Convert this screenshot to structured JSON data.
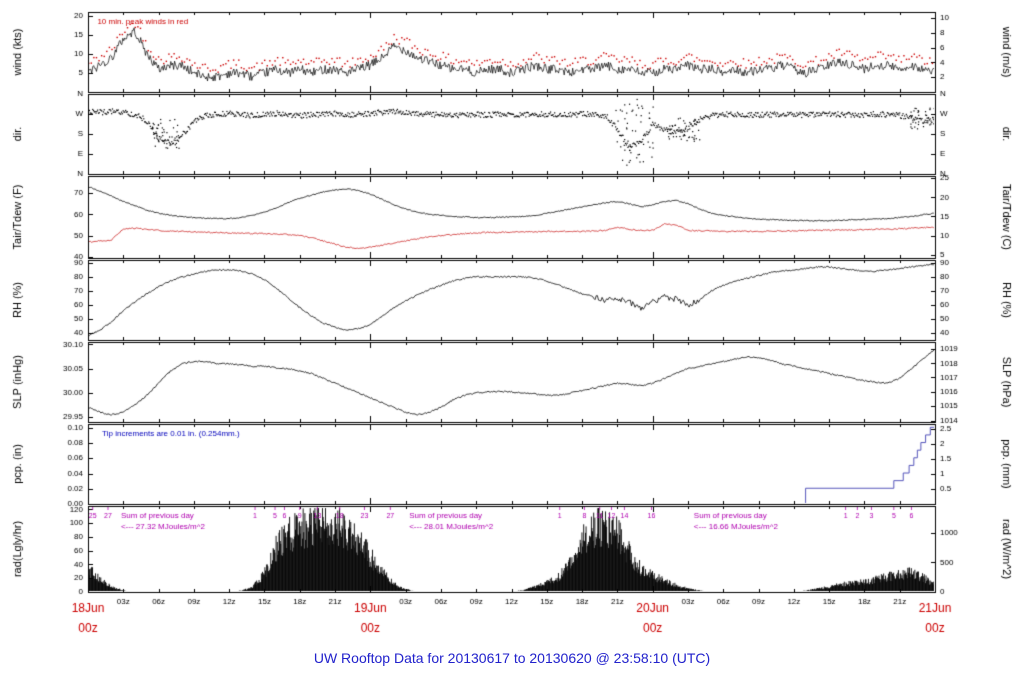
{
  "title": "UW Rooftop Data for 20130617  to  20130620 @ 23:58:10  (UTC)",
  "colors": {
    "trace": "#000000",
    "peak_red": "#cc0000",
    "dew_red": "#cc2222",
    "pcp_blue": "#5555bb",
    "annot_blue": "#0000bb",
    "annot_purple": "#b000b0",
    "axis_red": "#cc0000",
    "title_blue": "#2222cc"
  },
  "chart_data": {
    "type": "line",
    "x_hours": [
      0,
      72
    ],
    "x_minor_step": 3,
    "x_minor_cycle": [
      "03z",
      "06z",
      "09z",
      "12z",
      "15z",
      "18z",
      "21z"
    ],
    "x_major": [
      {
        "hour": 0,
        "date": "18Jun",
        "time": "00z"
      },
      {
        "hour": 24,
        "date": "19Jun",
        "time": "00z"
      },
      {
        "hour": 48,
        "date": "20Jun",
        "time": "00z"
      },
      {
        "hour": 72,
        "date": "21Jun",
        "time": "00z"
      }
    ],
    "panels": [
      {
        "id": "wind",
        "label_left": "wind (kts)",
        "label_right": "wind (m/s)",
        "ylim": [
          0,
          21
        ],
        "ticks_left": [
          [
            5,
            "5"
          ],
          [
            10,
            "10"
          ],
          [
            15,
            "15"
          ],
          [
            20,
            "20"
          ]
        ],
        "ticks_right": [
          [
            3.89,
            "2"
          ],
          [
            7.78,
            "4"
          ],
          [
            11.66,
            "6"
          ],
          [
            15.55,
            "8"
          ],
          [
            19.44,
            "10"
          ]
        ],
        "annotation": {
          "text": "10 min. peak winds in red",
          "hour": 0.8
        },
        "mean_kts": [
          5,
          7,
          9,
          14,
          16,
          10,
          6,
          7,
          7,
          5,
          4,
          4,
          5,
          5,
          4,
          5,
          6,
          5,
          6,
          5,
          6,
          6,
          5,
          6,
          7,
          9,
          12,
          11,
          9,
          8,
          7,
          6,
          6,
          5,
          6,
          6,
          5,
          6,
          7,
          6,
          6,
          5,
          6,
          6,
          7,
          6,
          6,
          5,
          5,
          6,
          6,
          7,
          6,
          6,
          5,
          6,
          5,
          6,
          6,
          7,
          6,
          5,
          6,
          7,
          8,
          7,
          6,
          7,
          7,
          6,
          7,
          6,
          5
        ],
        "peak_offset_kts": 2.5
      },
      {
        "id": "dir",
        "label_left": "dir.",
        "label_right": "dir.",
        "ylim": [
          0,
          360
        ],
        "ticks_left": [
          [
            360,
            "N"
          ],
          [
            270,
            "W"
          ],
          [
            180,
            "S"
          ],
          [
            90,
            "E"
          ],
          [
            0,
            "N"
          ]
        ],
        "ticks_right": [
          [
            360,
            "N"
          ],
          [
            270,
            "W"
          ],
          [
            180,
            "S"
          ],
          [
            90,
            "E"
          ],
          [
            0,
            "N"
          ]
        ],
        "deg": [
          285,
          280,
          285,
          280,
          270,
          240,
          160,
          140,
          180,
          240,
          265,
          270,
          275,
          270,
          265,
          270,
          275,
          270,
          265,
          270,
          270,
          275,
          270,
          270,
          275,
          280,
          285,
          280,
          275,
          270,
          270,
          265,
          270,
          270,
          268,
          272,
          270,
          268,
          272,
          270,
          270,
          268,
          272,
          270,
          265,
          200,
          120,
          150,
          230,
          200,
          190,
          210,
          250,
          265,
          270,
          272,
          270,
          268,
          270,
          272,
          270,
          268,
          270,
          272,
          270,
          268,
          270,
          272,
          270,
          265,
          255,
          240,
          250
        ],
        "extra_scatter": [
          [
            5.3,
            8.0,
            110,
            250
          ],
          [
            44.8,
            48.0,
            40,
            340
          ],
          [
            49.2,
            52.0,
            150,
            255
          ],
          [
            69.8,
            72.0,
            205,
            300
          ]
        ]
      },
      {
        "id": "temp",
        "label_left": "Tair/Tdew (F)",
        "label_right": "Tair/Tdew (C)",
        "ylim": [
          39.5,
          78
        ],
        "ticks_left": [
          [
            40,
            "40"
          ],
          [
            50,
            "50"
          ],
          [
            60,
            "60"
          ],
          [
            70,
            "70"
          ]
        ],
        "ticks_right": [
          [
            41,
            "5"
          ],
          [
            50,
            "10"
          ],
          [
            59,
            "15"
          ],
          [
            68,
            "20"
          ],
          [
            77,
            "25"
          ]
        ],
        "tair_f": [
          73,
          71,
          68.5,
          66,
          64,
          62,
          60.5,
          59.5,
          59,
          58.5,
          58.2,
          58,
          58,
          58.5,
          59.5,
          61,
          63,
          65.5,
          67.5,
          69,
          70.5,
          71.5,
          72,
          71,
          69.5,
          67,
          64.5,
          62.5,
          61,
          60,
          59.5,
          59,
          58.8,
          58.5,
          58.5,
          58.6,
          58.8,
          59,
          59.5,
          60.5,
          61.5,
          62.5,
          63.5,
          64.5,
          65.5,
          66,
          65,
          63.5,
          64.5,
          66,
          66.5,
          65,
          62.5,
          60.5,
          59.5,
          58.8,
          58.2,
          57.8,
          57.5,
          57.3,
          57.2,
          57,
          57,
          57,
          57.2,
          57.5,
          57.6,
          57.8,
          58,
          58.5,
          59,
          59.8,
          60.5
        ],
        "tdew_f": [
          47,
          47.5,
          48,
          53,
          53.5,
          53,
          52.5,
          52,
          52,
          51.8,
          51.5,
          51.5,
          51.3,
          51.2,
          51,
          51,
          50.8,
          50.5,
          50,
          49,
          47.5,
          46,
          44.5,
          44,
          44.5,
          45.5,
          46.5,
          47.5,
          48.5,
          49.5,
          50,
          50.5,
          51,
          51.2,
          51.5,
          51.5,
          51.6,
          51.7,
          51.8,
          52,
          52,
          52,
          52,
          52.2,
          52.5,
          54,
          53,
          52.5,
          52.5,
          55.5,
          55,
          52.5,
          52.3,
          52.2,
          52,
          52,
          52,
          52,
          52.1,
          52.2,
          52.3,
          52.4,
          52.5,
          52.5,
          52.6,
          52.7,
          52.8,
          53,
          53,
          53.2,
          53.5,
          53.8,
          54
        ]
      },
      {
        "id": "rh",
        "label_left": "RH (%)",
        "label_right": "RH (%)",
        "ylim": [
          35,
          92
        ],
        "ticks_left": [
          [
            40,
            "40"
          ],
          [
            50,
            "50"
          ],
          [
            60,
            "60"
          ],
          [
            70,
            "70"
          ],
          [
            80,
            "80"
          ],
          [
            90,
            "90"
          ]
        ],
        "ticks_right": [
          [
            40,
            "40"
          ],
          [
            50,
            "50"
          ],
          [
            60,
            "60"
          ],
          [
            70,
            "70"
          ],
          [
            80,
            "80"
          ],
          [
            90,
            "90"
          ]
        ],
        "rh_pct": [
          38,
          42,
          48,
          56,
          62,
          68,
          73,
          77,
          80,
          82,
          84,
          85,
          85,
          84,
          82,
          78,
          72,
          65,
          58,
          52,
          47,
          44,
          42,
          43,
          46,
          52,
          58,
          63,
          67,
          71,
          74,
          77,
          79,
          80,
          80,
          80,
          80,
          80,
          79,
          77,
          74,
          71,
          68,
          66,
          63,
          65,
          62,
          58,
          62,
          66,
          64,
          60,
          64,
          70,
          74,
          77,
          79,
          81,
          83,
          84,
          85,
          86,
          87,
          87,
          86,
          85,
          84,
          84,
          85,
          86,
          87,
          88,
          89
        ]
      },
      {
        "id": "slp",
        "label_left": "SLP (inHg)",
        "label_right": "SLP (hPa)",
        "ylim": [
          29.94,
          30.105
        ],
        "ticks_left": [
          [
            29.95,
            "29.95"
          ],
          [
            30.0,
            "30.00"
          ],
          [
            30.05,
            "30.05"
          ],
          [
            30.1,
            "30.10"
          ]
        ],
        "ticks_right": [
          [
            29.943,
            "1014"
          ],
          [
            29.973,
            "1015"
          ],
          [
            30.002,
            "1016"
          ],
          [
            30.032,
            "1017"
          ],
          [
            30.061,
            "1018"
          ],
          [
            30.091,
            "1019"
          ]
        ],
        "slp_inhg": [
          29.97,
          29.96,
          29.955,
          29.96,
          29.975,
          29.995,
          30.02,
          30.045,
          30.06,
          30.065,
          30.065,
          30.06,
          30.06,
          30.058,
          30.055,
          30.055,
          30.052,
          30.05,
          30.045,
          30.04,
          30.03,
          30.02,
          30.01,
          30.0,
          29.99,
          29.98,
          29.97,
          29.96,
          29.955,
          29.96,
          29.97,
          29.985,
          29.995,
          30.0,
          30.002,
          30.003,
          30.002,
          30.0,
          29.998,
          29.995,
          29.995,
          30.0,
          30.005,
          30.01,
          30.015,
          30.02,
          30.018,
          30.015,
          30.02,
          30.03,
          30.04,
          30.05,
          30.055,
          30.06,
          30.065,
          30.07,
          30.075,
          30.072,
          30.068,
          30.06,
          30.055,
          30.05,
          30.045,
          30.04,
          30.035,
          30.03,
          30.025,
          30.022,
          30.02,
          30.03,
          30.05,
          30.07,
          30.09
        ]
      },
      {
        "id": "pcp",
        "label_left": "pcp. (in)",
        "label_right": "pcp. (mm)",
        "ylim": [
          0,
          0.105
        ],
        "ticks_left": [
          [
            0,
            "0.00"
          ],
          [
            0.02,
            "0.02"
          ],
          [
            0.04,
            "0.04"
          ],
          [
            0.06,
            "0.06"
          ],
          [
            0.08,
            "0.08"
          ],
          [
            0.1,
            "0.10"
          ]
        ],
        "ticks_right": [
          [
            0.0197,
            "0.5"
          ],
          [
            0.0394,
            "1"
          ],
          [
            0.0591,
            "1.5"
          ],
          [
            0.0787,
            "2"
          ],
          [
            0.0984,
            "2.5"
          ]
        ],
        "annotation": {
          "text": "Tip increments are 0.01 in. (0.254mm.)",
          "hour": 1.2
        },
        "step_points": [
          [
            0,
            0
          ],
          [
            61,
            0
          ],
          [
            61,
            0.02
          ],
          [
            68.5,
            0.02
          ],
          [
            68.5,
            0.03
          ],
          [
            69.3,
            0.03
          ],
          [
            69.3,
            0.04
          ],
          [
            69.8,
            0.04
          ],
          [
            69.8,
            0.05
          ],
          [
            70.2,
            0.05
          ],
          [
            70.2,
            0.06
          ],
          [
            70.5,
            0.06
          ],
          [
            70.5,
            0.07
          ],
          [
            70.8,
            0.07
          ],
          [
            70.8,
            0.08
          ],
          [
            71.2,
            0.08
          ],
          [
            71.2,
            0.09
          ],
          [
            71.6,
            0.09
          ],
          [
            71.6,
            0.1
          ],
          [
            72,
            0.1
          ]
        ]
      },
      {
        "id": "rad",
        "label_left": "rad(Lgly/hr)",
        "label_right": "rad (W/m^2)",
        "ylim": [
          0,
          125
        ],
        "ticks_left": [
          [
            0,
            "0"
          ],
          [
            20,
            "20"
          ],
          [
            40,
            "40"
          ],
          [
            60,
            "60"
          ],
          [
            80,
            "80"
          ],
          [
            100,
            "100"
          ],
          [
            120,
            "120"
          ]
        ],
        "ticks_right": [
          [
            0,
            "0"
          ],
          [
            43,
            "500"
          ],
          [
            86,
            "1000"
          ]
        ],
        "rad_lgly": [
          35,
          20,
          8,
          2,
          0,
          0,
          0,
          0,
          0,
          0,
          0,
          0,
          0,
          2,
          8,
          30,
          70,
          90,
          100,
          105,
          108,
          105,
          95,
          80,
          55,
          30,
          12,
          4,
          0,
          0,
          0,
          0,
          0,
          0,
          0,
          0,
          0,
          3,
          8,
          15,
          25,
          45,
          80,
          100,
          105,
          90,
          60,
          35,
          25,
          18,
          10,
          5,
          2,
          0,
          0,
          0,
          0,
          0,
          0,
          0,
          0,
          2,
          5,
          8,
          12,
          14,
          16,
          20,
          24,
          28,
          30,
          22,
          12
        ],
        "mj_ticks": [
          {
            "t": "25",
            "h": 0.4
          },
          {
            "t": "27",
            "h": 1.7
          },
          {
            "t": "1",
            "h": 14.2
          },
          {
            "t": "5",
            "h": 15.9
          },
          {
            "t": "6",
            "h": 16.7
          },
          {
            "t": "9",
            "h": 18.0
          },
          {
            "t": "13",
            "h": 19.5
          },
          {
            "t": "18",
            "h": 21.4
          },
          {
            "t": "23",
            "h": 23.5
          },
          {
            "t": "27",
            "h": 25.7
          },
          {
            "t": "1",
            "h": 40.1
          },
          {
            "t": "8",
            "h": 42.2
          },
          {
            "t": "11",
            "h": 43.5
          },
          {
            "t": "12",
            "h": 44.5
          },
          {
            "t": "14",
            "h": 45.6
          },
          {
            "t": "16",
            "h": 47.9
          },
          {
            "t": "1",
            "h": 64.4
          },
          {
            "t": "2",
            "h": 65.4
          },
          {
            "t": "3",
            "h": 66.6
          },
          {
            "t": "5",
            "h": 68.5
          },
          {
            "t": "6",
            "h": 70.0
          }
        ],
        "sum_annotations": [
          {
            "hour": 2.8,
            "line1": "Sum of previous day",
            "line2": "<--- 27.32 MJoules/m^2"
          },
          {
            "hour": 27.3,
            "line1": "Sum of previous day",
            "line2": "<--- 28.01 MJoules/m^2"
          },
          {
            "hour": 51.5,
            "line1": "Sum of previous day",
            "line2": "<--- 16.66 MJoules/m^2"
          }
        ]
      }
    ]
  }
}
